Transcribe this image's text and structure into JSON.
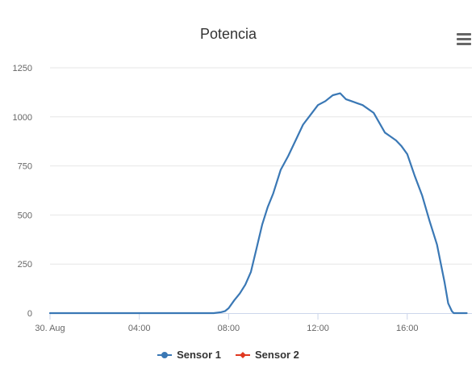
{
  "colors": {
    "sensor1": "#3a78b5",
    "sensor2": "#e0371f",
    "grid": "#e6e6e6",
    "axis": "#ccd6eb"
  },
  "icons": {
    "menu": "hamburger-menu-icon"
  },
  "chart_data": {
    "type": "line",
    "title": "Potencia",
    "xlabel": "",
    "ylabel": "",
    "ylim": [
      0,
      1250
    ],
    "xlim_hours": [
      0,
      18.9
    ],
    "yticks": [
      "0",
      "250",
      "500",
      "750",
      "1000",
      "1250"
    ],
    "xticks": [
      {
        "label": "30. Aug",
        "hour": 0
      },
      {
        "label": "04:00",
        "hour": 4
      },
      {
        "label": "08:00",
        "hour": 8
      },
      {
        "label": "12:00",
        "hour": 12
      },
      {
        "label": "16:00",
        "hour": 16
      }
    ],
    "grid": true,
    "legend": "bottom",
    "series": [
      {
        "name": "Sensor 1",
        "x": [
          "00:00",
          "07:20",
          "07:40",
          "07:50",
          "08:00",
          "08:15",
          "08:30",
          "08:45",
          "09:00",
          "09:15",
          "09:30",
          "09:45",
          "10:00",
          "10:20",
          "10:40",
          "11:00",
          "11:20",
          "11:40",
          "12:00",
          "12:20",
          "12:40",
          "13:00",
          "13:15",
          "13:30",
          "13:45",
          "14:00",
          "14:30",
          "15:00",
          "15:15",
          "15:30",
          "15:45",
          "16:00",
          "16:20",
          "16:40",
          "17:00",
          "17:20",
          "17:40",
          "17:50",
          "18:00",
          "18:05",
          "18:15",
          "18:30",
          "18:40"
        ],
        "y": [
          0,
          0,
          5,
          10,
          25,
          65,
          100,
          145,
          210,
          330,
          450,
          540,
          610,
          730,
          800,
          880,
          960,
          1010,
          1060,
          1080,
          1110,
          1120,
          1090,
          1080,
          1070,
          1060,
          1020,
          920,
          900,
          880,
          850,
          810,
          700,
          600,
          470,
          350,
          160,
          50,
          10,
          0,
          0,
          0,
          0
        ]
      },
      {
        "name": "Sensor 2",
        "x": [],
        "y": []
      }
    ]
  }
}
